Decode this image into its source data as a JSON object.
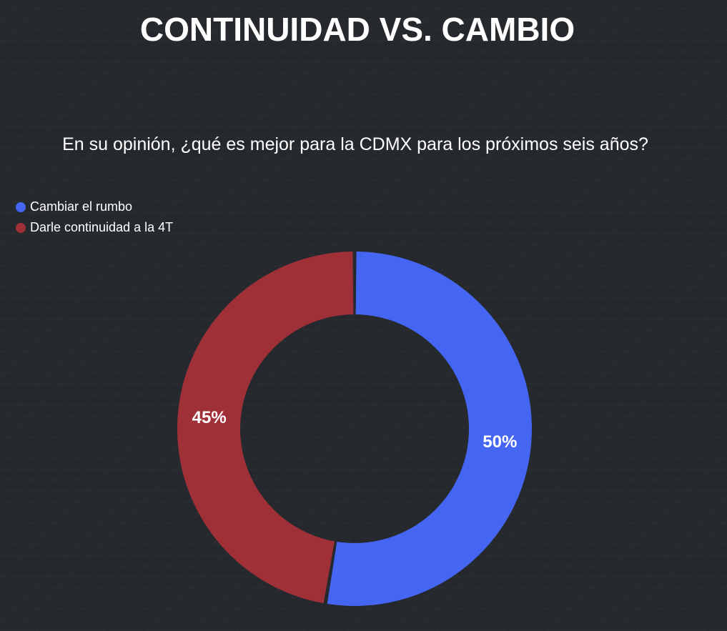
{
  "chart_data": {
    "type": "pie",
    "style": "donut",
    "title": "CONTINUIDAD VS. CAMBIO",
    "subtitle": "En su opinión, ¿qué es mejor para la CDMX para los próximos seis años?",
    "legend_position": "top-left",
    "slices": [
      {
        "label": "Cambiar el rumbo",
        "value": 50,
        "display": "50%",
        "color": "#4566f3"
      },
      {
        "label": "Darle continuidad a la 4T",
        "value": 45,
        "display": "45%",
        "color": "#a03038"
      }
    ]
  }
}
